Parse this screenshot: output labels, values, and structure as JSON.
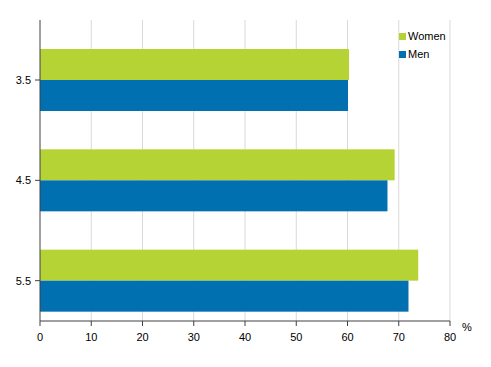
{
  "chart_data": {
    "type": "bar",
    "orientation": "horizontal",
    "categories": [
      "3.5",
      "4.5",
      "5.5"
    ],
    "series": [
      {
        "name": "Women",
        "color": "#b5d334",
        "values": [
          60.3,
          69.2,
          73.8
        ]
      },
      {
        "name": "Men",
        "color": "#0070b0",
        "values": [
          60.1,
          67.8,
          71.9
        ]
      }
    ],
    "x_label": "%",
    "xlim": [
      0,
      80
    ],
    "xticks": [
      0,
      10,
      20,
      30,
      40,
      50,
      60,
      70,
      80
    ],
    "grid": true,
    "legend": "upper right"
  }
}
